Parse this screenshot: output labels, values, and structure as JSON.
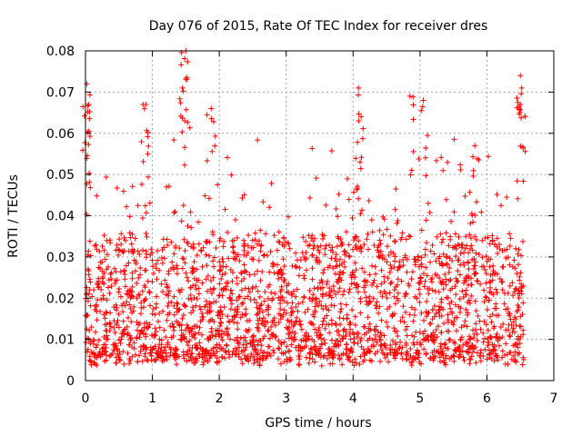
{
  "chart_data": {
    "type": "scatter",
    "title": "Day 076 of 2015, Rate Of TEC Index for receiver dres",
    "xlabel": "GPS time / hours",
    "ylabel": "ROTI / TECUs",
    "xlim": [
      0,
      7
    ],
    "ylim": [
      0,
      0.08
    ],
    "x_ticks": [
      0,
      1,
      2,
      3,
      4,
      5,
      6,
      7
    ],
    "x_tick_labels": [
      "0",
      "1",
      "2",
      "3",
      "4",
      "5",
      "6",
      "7"
    ],
    "y_ticks": [
      0,
      0.01,
      0.02,
      0.03,
      0.04,
      0.05,
      0.06,
      0.07,
      0.08
    ],
    "y_tick_labels": [
      "0",
      "0.01",
      "0.02",
      "0.03",
      "0.04",
      "0.05",
      "0.06",
      "0.07",
      "0.08"
    ],
    "grid": true,
    "marker": "+",
    "series": [
      {
        "name": "ROTI",
        "color": "#ff0000",
        "x_range": [
          0,
          6.55
        ],
        "typical_range": [
          0.005,
          0.035
        ],
        "min_value": 0.003,
        "max_value": 0.08,
        "peaks": [
          {
            "x": 0.02,
            "y": 0.072
          },
          {
            "x": 0.05,
            "y": 0.067
          },
          {
            "x": 0.9,
            "y": 0.067
          },
          {
            "x": 1.45,
            "y": 0.071
          },
          {
            "x": 1.5,
            "y": 0.08
          },
          {
            "x": 1.88,
            "y": 0.066
          },
          {
            "x": 4.08,
            "y": 0.071
          },
          {
            "x": 4.12,
            "y": 0.064
          },
          {
            "x": 4.85,
            "y": 0.069
          },
          {
            "x": 5.05,
            "y": 0.068
          },
          {
            "x": 5.82,
            "y": 0.057
          },
          {
            "x": 6.5,
            "y": 0.074
          },
          {
            "x": 6.52,
            "y": 0.071
          }
        ]
      }
    ]
  }
}
